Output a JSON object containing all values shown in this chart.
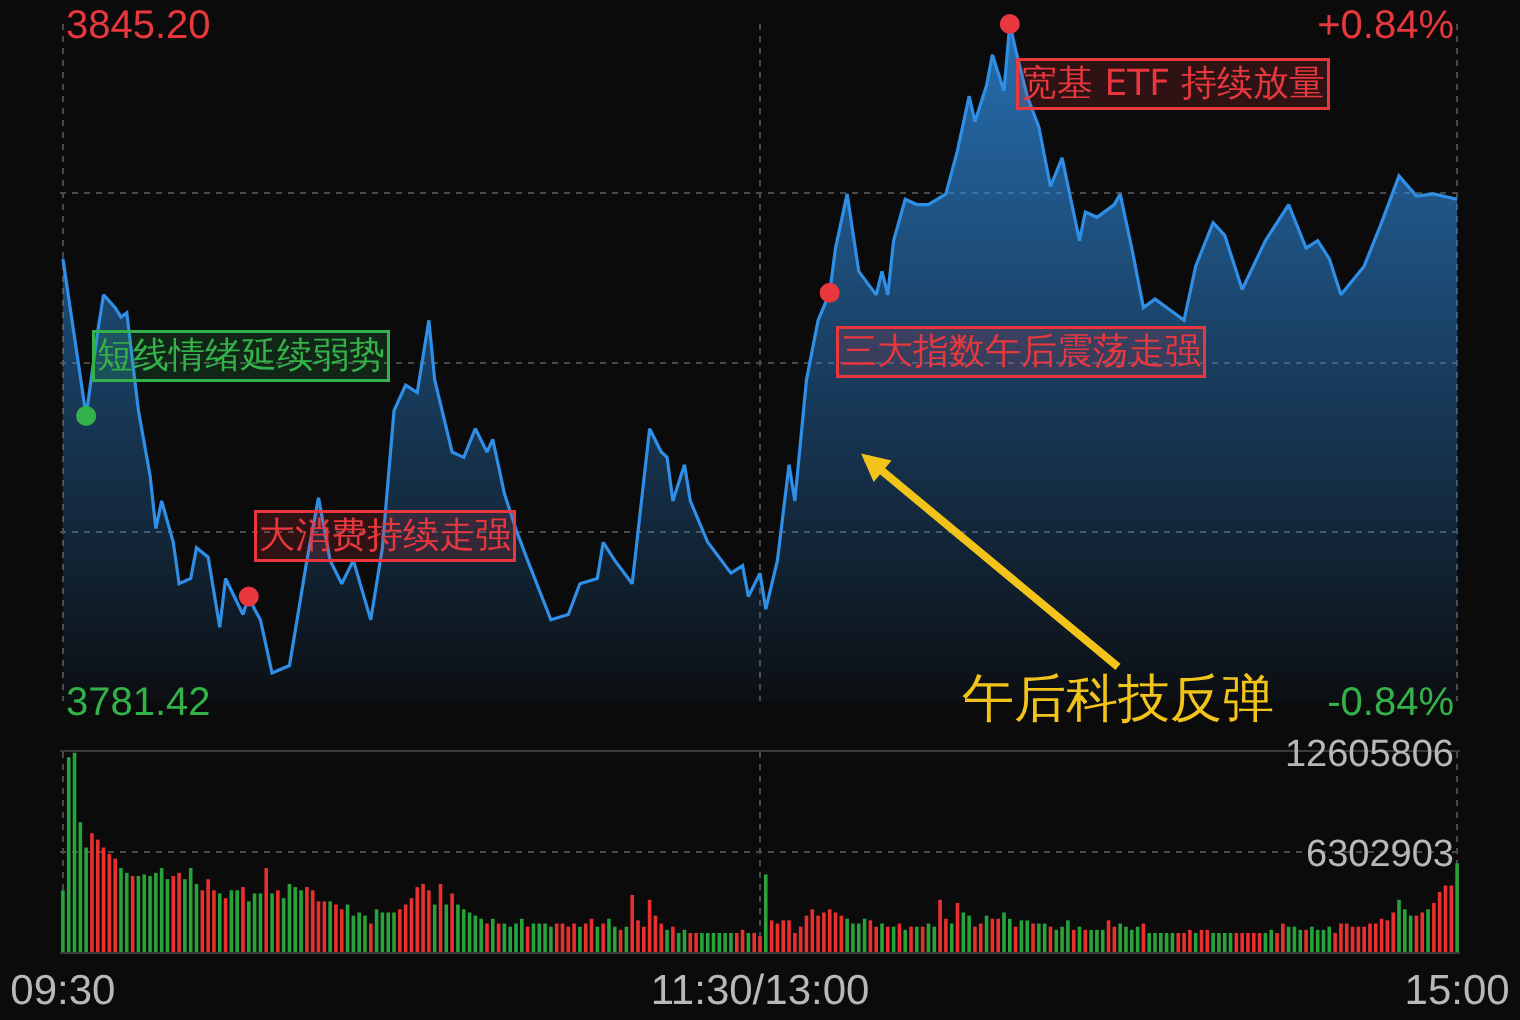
{
  "chart_data": [
    {
      "type": "area",
      "categories": [
        "09:30",
        null,
        null,
        null,
        null,
        null,
        null,
        null,
        null,
        null,
        null,
        null,
        null,
        null,
        null,
        null,
        null,
        null,
        null,
        null,
        null,
        null,
        null,
        null,
        null,
        null,
        null,
        null,
        null,
        null,
        null,
        null,
        null,
        null,
        null,
        null,
        null,
        null,
        null,
        null,
        null,
        null,
        null,
        null,
        null,
        null,
        null,
        null,
        null,
        null,
        null,
        null,
        null,
        null,
        null,
        null,
        null,
        null,
        null,
        null,
        null,
        null,
        null,
        null,
        null,
        null,
        null,
        null,
        null,
        null,
        null,
        null,
        null,
        null,
        null,
        null,
        null,
        null,
        null,
        null,
        null,
        null,
        null,
        null,
        null,
        null,
        null,
        null,
        null,
        null,
        null,
        null,
        null,
        null,
        null,
        null,
        null,
        null,
        null,
        null,
        null,
        null,
        null,
        null,
        null,
        null,
        null,
        null,
        null,
        null,
        null,
        null,
        null,
        null,
        null,
        null,
        null,
        null,
        null,
        null,
        "11:30/13:00",
        null,
        null,
        null,
        null,
        null,
        null,
        null,
        null,
        null,
        null,
        null,
        null,
        null,
        null,
        null,
        null,
        null,
        null,
        null,
        null,
        null,
        null,
        null,
        null,
        null,
        null,
        null,
        null,
        null,
        null,
        null,
        null,
        null,
        null,
        null,
        null,
        null,
        null,
        null,
        null,
        null,
        null,
        null,
        null,
        null,
        null,
        null,
        null,
        null,
        null,
        null,
        null,
        null,
        null,
        null,
        null,
        null,
        null,
        null,
        null,
        null,
        null,
        null,
        null,
        null,
        null,
        null,
        null,
        null,
        null,
        null,
        null,
        null,
        null,
        null,
        null,
        null,
        null,
        null,
        null,
        null,
        null,
        null,
        null,
        null,
        null,
        null,
        null,
        null,
        null,
        null,
        null,
        null,
        null,
        null,
        null,
        null,
        null,
        null,
        null,
        null,
        null,
        null,
        null,
        null,
        null,
        null,
        null,
        null,
        null,
        null,
        null,
        null,
        null,
        null,
        null,
        null,
        null,
        null,
        "15:00"
      ],
      "ylim": [
        3781.42,
        3845.2
      ],
      "yticks": [
        {
          "value": 3781.42,
          "label": "3781.42"
        },
        {
          "value": 3797.37,
          "label": null
        },
        {
          "value": 3813.31,
          "label": null
        },
        {
          "value": 3829.26,
          "label": null
        },
        {
          "value": 3845.2,
          "label": "3845.20"
        }
      ],
      "y2lim": [
        -0.84,
        0.84
      ],
      "y2ticks": [
        {
          "value": -0.84,
          "label": "-0.84%"
        },
        {
          "value": 0.84,
          "label": "+0.84%"
        }
      ],
      "grid": true,
      "series": [
        {
          "color": "#2f8fe6",
          "values": [
            3823.1,
            null,
            null,
            null,
            3808.3,
            null,
            3816.3,
            3819.7,
            null,
            3818.5,
            3817.6,
            3818.0,
            null,
            3808.8,
            null,
            3802.7,
            3797.7,
            3800.3,
            null,
            3796.4,
            3792.5,
            null,
            3793.0,
            3795.9,
            null,
            3795.0,
            null,
            3788.4,
            3793.0,
            null,
            null,
            3789.6,
            3791.3,
            3790.1,
            3789.1,
            null,
            3784.1,
            null,
            null,
            3784.8,
            null,
            null,
            3794.7,
            null,
            3800.6,
            null,
            3794.7,
            null,
            3792.5,
            null,
            3794.7,
            null,
            null,
            3789.1,
            null,
            3795.9,
            null,
            3808.8,
            null,
            3811.2,
            null,
            3810.5,
            null,
            3817.3,
            3811.7,
            null,
            null,
            3804.9,
            null,
            3804.4,
            null,
            3807.1,
            null,
            3804.9,
            3806.1,
            null,
            3801.0,
            null,
            3797.6,
            null,
            3794.7,
            null,
            null,
            null,
            3789.1,
            null,
            null,
            3789.6,
            null,
            3792.5,
            null,
            null,
            3793.0,
            3796.4,
            null,
            3794.7,
            null,
            null,
            3792.5,
            null,
            null,
            3807.1,
            null,
            3804.9,
            3804.4,
            3800.3,
            null,
            3803.7,
            3800.3,
            null,
            null,
            3796.4,
            null,
            null,
            null,
            3793.5,
            null,
            3794.2,
            3791.3,
            null,
            3793.5,
            3790.1,
            null,
            3794.7,
            null,
            3803.7,
            3800.3,
            null,
            3811.7,
            null,
            3817.3,
            null,
            3819.9,
            3824.1,
            null,
            3829.2,
            null,
            3821.9,
            null,
            null,
            3819.7,
            3821.9,
            3819.7,
            3824.8,
            null,
            3828.7,
            null,
            3828.2,
            null,
            3828.2,
            null,
            null,
            3829.2,
            null,
            3833.3,
            null,
            3838.4,
            3836.0,
            null,
            3839.4,
            3842.3,
            null,
            3838.9,
            3845.2,
            3842.8,
            null,
            3838.4,
            null,
            3835.5,
            null,
            3829.9,
            null,
            3832.6,
            null,
            null,
            3824.8,
            3827.5,
            null,
            3827.0,
            null,
            null,
            3828.2,
            3829.2,
            null,
            3824.1,
            null,
            3818.5,
            null,
            3819.3,
            null,
            null,
            null,
            null,
            3817.3,
            null,
            3822.4,
            null,
            null,
            3826.5,
            null,
            3825.3,
            null,
            null,
            3820.2,
            null,
            null,
            null,
            3824.8,
            null,
            null,
            null,
            3828.2,
            null,
            null,
            3824.1,
            null,
            3824.8,
            null,
            3823.1,
            null,
            3819.7,
            null,
            null,
            null,
            3822.4,
            null,
            null,
            3826.5,
            null,
            null,
            3830.9,
            null,
            null,
            3829.0,
            null,
            null,
            3829.2,
            null,
            null,
            null,
            3828.7
          ]
        },
        {
          "type": "scatter",
          "color": "#34b24a",
          "values": [
            null,
            null,
            null,
            null,
            3808.3,
            null,
            null,
            null,
            null,
            null,
            null,
            null,
            null,
            null,
            null,
            null,
            null,
            null,
            null,
            null,
            null,
            null,
            null,
            null,
            null,
            null,
            null,
            null,
            null,
            null,
            null,
            null,
            null,
            null,
            null,
            null,
            null,
            null,
            null,
            null,
            null,
            null,
            null,
            null,
            null,
            null,
            null,
            null,
            null,
            null,
            null,
            null,
            null,
            null,
            null,
            null,
            null,
            null,
            null,
            null,
            null,
            null,
            null,
            null,
            null,
            null,
            null,
            null,
            null,
            null,
            null,
            null,
            null,
            null,
            null,
            null,
            null,
            null,
            null,
            null,
            null,
            null,
            null,
            null,
            null,
            null,
            null,
            null,
            null,
            null,
            null,
            null,
            null,
            null,
            null,
            null,
            null,
            null,
            null,
            null,
            null,
            null,
            null,
            null,
            null,
            null,
            null,
            null,
            null,
            null,
            null,
            null,
            null,
            null,
            null,
            null,
            null,
            null,
            null,
            null,
            null,
            null,
            null,
            null,
            null,
            null,
            null,
            null,
            null,
            null,
            null,
            null,
            null,
            null,
            null,
            null,
            null,
            null,
            null,
            null,
            null,
            null,
            null,
            null,
            null,
            null,
            null,
            null,
            null,
            null,
            null,
            null,
            null,
            null,
            null,
            null,
            null,
            null,
            null,
            null,
            null,
            null,
            null,
            null,
            null,
            null,
            null,
            null,
            null,
            null,
            null,
            null,
            null,
            null,
            null,
            null,
            null,
            null,
            null,
            null,
            null,
            null,
            null,
            null,
            null,
            null,
            null,
            null,
            null,
            null,
            null,
            null,
            null,
            null,
            null,
            null,
            null,
            null,
            null,
            null,
            null,
            null,
            null,
            null,
            null,
            null,
            null,
            null,
            null,
            null,
            null,
            null,
            null,
            null,
            null,
            null,
            null,
            null,
            null,
            null,
            null,
            null,
            null,
            null,
            null,
            null,
            null,
            null,
            null,
            null,
            null,
            null,
            null,
            null,
            null,
            null,
            null,
            null,
            null,
            null,
            null
          ]
        },
        {
          "type": "scatter",
          "color": "#e8383e",
          "values": [
            null,
            null,
            null,
            null,
            null,
            null,
            null,
            null,
            null,
            null,
            null,
            null,
            null,
            null,
            null,
            null,
            null,
            null,
            null,
            null,
            null,
            null,
            null,
            null,
            null,
            null,
            null,
            null,
            null,
            null,
            null,
            null,
            3791.3,
            null,
            null,
            null,
            null,
            null,
            null,
            null,
            null,
            null,
            null,
            null,
            null,
            null,
            null,
            null,
            null,
            null,
            null,
            null,
            null,
            null,
            null,
            null,
            null,
            null,
            null,
            null,
            null,
            null,
            null,
            null,
            null,
            null,
            null,
            null,
            null,
            null,
            null,
            null,
            null,
            null,
            null,
            null,
            null,
            null,
            null,
            null,
            null,
            null,
            null,
            null,
            null,
            null,
            null,
            null,
            null,
            null,
            null,
            null,
            null,
            null,
            null,
            null,
            null,
            null,
            null,
            null,
            null,
            null,
            null,
            null,
            null,
            null,
            null,
            null,
            null,
            null,
            null,
            null,
            null,
            null,
            null,
            null,
            null,
            null,
            null,
            null,
            null,
            null,
            null,
            null,
            null,
            null,
            null,
            null,
            null,
            null,
            null,
            null,
            3819.9,
            null,
            null,
            null,
            null,
            null,
            null,
            null,
            null,
            null,
            null,
            null,
            null,
            null,
            null,
            null,
            null,
            null,
            null,
            null,
            null,
            null,
            null,
            null,
            null,
            null,
            null,
            null,
            null,
            null,
            null,
            3845.2,
            null,
            null,
            null,
            null,
            null,
            null,
            null,
            null,
            null,
            null,
            null,
            null,
            null,
            null,
            null,
            null,
            null,
            null,
            null,
            null,
            null,
            null,
            null,
            null,
            null,
            null,
            null,
            null,
            null,
            null,
            null,
            null,
            null,
            null,
            null,
            null,
            null,
            null,
            null,
            null,
            null,
            null,
            null,
            null,
            null,
            null,
            null,
            null,
            null,
            null,
            null,
            null,
            null,
            null,
            null,
            null,
            null,
            null,
            null,
            null,
            null,
            null,
            null,
            null,
            null,
            null,
            null,
            null,
            null,
            null,
            null,
            null,
            null,
            null,
            null,
            null,
            null
          ]
        },
        {
          "type": "bar",
          "axis": "y3",
          "values": [
            3900000,
            12300000,
            12600000,
            8200000,
            6600000,
            7500000,
            7100000,
            6600000,
            6200000,
            5900000,
            5300000,
            5000000,
            4800000,
            4800000,
            4900000,
            4800000,
            5000000,
            5300000,
            4600000,
            4800000,
            5000000,
            4600000,
            5300000,
            4300000,
            3900000,
            4600000,
            3900000,
            3700000,
            3400000,
            3900000,
            3900000,
            4100000,
            3200000,
            3700000,
            3700000,
            5300000,
            3700000,
            3900000,
            3400000,
            4300000,
            4100000,
            3900000,
            4100000,
            3900000,
            3200000,
            3200000,
            3200000,
            3000000,
            2700000,
            3000000,
            2300000,
            2500000,
            2300000,
            1800000,
            2700000,
            2500000,
            2500000,
            2500000,
            2700000,
            3000000,
            3400000,
            4100000,
            4300000,
            3900000,
            3000000,
            4300000,
            3000000,
            3700000,
            3000000,
            2700000,
            2500000,
            2300000,
            2100000,
            1800000,
            2100000,
            1800000,
            1800000,
            1600000,
            1800000,
            2100000,
            1600000,
            1800000,
            1800000,
            1800000,
            1600000,
            1800000,
            1800000,
            1600000,
            1800000,
            1600000,
            1800000,
            2100000,
            1600000,
            1800000,
            2100000,
            1600000,
            1400000,
            1600000,
            3600000,
            2000000,
            1600000,
            3300000,
            2300000,
            1800000,
            1400000,
            1600000,
            1200000,
            1400000,
            1200000,
            1200000,
            1200000,
            1200000,
            1200000,
            1200000,
            1200000,
            1200000,
            1200000,
            1400000,
            1200000,
            1200000,
            1000000,
            4900000,
            2000000,
            1800000,
            2000000,
            2000000,
            1200000,
            1600000,
            2300000,
            2700000,
            2300000,
            2500000,
            2700000,
            2500000,
            2300000,
            2100000,
            1800000,
            1800000,
            2100000,
            2000000,
            1600000,
            1800000,
            1600000,
            1600000,
            1800000,
            1400000,
            1600000,
            1600000,
            1600000,
            1800000,
            1600000,
            3300000,
            2100000,
            1800000,
            3100000,
            2500000,
            2300000,
            1600000,
            1800000,
            2300000,
            2100000,
            2100000,
            2500000,
            2100000,
            1600000,
            2000000,
            2000000,
            1800000,
            1800000,
            1800000,
            1600000,
            1400000,
            1600000,
            2000000,
            1400000,
            1600000,
            1400000,
            1400000,
            1400000,
            1400000,
            2000000,
            1600000,
            1800000,
            1600000,
            1400000,
            1600000,
            1800000,
            1200000,
            1200000,
            1200000,
            1200000,
            1200000,
            1200000,
            1200000,
            1400000,
            1200000,
            1400000,
            1400000,
            1200000,
            1200000,
            1200000,
            1200000,
            1200000,
            1200000,
            1200000,
            1200000,
            1200000,
            1200000,
            1400000,
            1200000,
            1800000,
            1600000,
            1600000,
            1400000,
            1400000,
            1600000,
            1400000,
            1400000,
            1600000,
            1200000,
            1800000,
            1800000,
            1600000,
            1600000,
            1600000,
            1800000,
            1800000,
            2100000,
            2000000,
            2500000,
            3300000,
            2700000,
            2300000,
            2300000,
            2500000,
            2700000,
            3100000,
            3800000,
            4200000,
            4200000,
            5600000
          ],
          "colors": [
            "#28a23a",
            "#28a23a",
            "#28a23a",
            "#28a23a",
            "#28a23a",
            "#e8312f",
            "#e8312f",
            "#e8312f",
            "#e8312f",
            "#e8312f",
            "#28a23a",
            "#28a23a",
            "#e8312f",
            "#28a23a",
            "#28a23a",
            "#28a23a",
            "#28a23a",
            "#28a23a",
            "#28a23a",
            "#e8312f",
            "#e8312f",
            "#28a23a",
            "#28a23a",
            "#28a23a",
            "#e8312f",
            "#e8312f",
            "#e8312f",
            "#28a23a",
            "#e8312f",
            "#28a23a",
            "#28a23a",
            "#e8312f",
            "#28a23a",
            "#28a23a",
            "#28a23a",
            "#e8312f",
            "#28a23a",
            "#e8312f",
            "#28a23a",
            "#28a23a",
            "#28a23a",
            "#28a23a",
            "#e8312f",
            "#e8312f",
            "#e8312f",
            "#e8312f",
            "#28a23a",
            "#e8312f",
            "#e8312f",
            "#28a23a",
            "#28a23a",
            "#28a23a",
            "#28a23a",
            "#e8312f",
            "#28a23a",
            "#28a23a",
            "#28a23a",
            "#28a23a",
            "#e8312f",
            "#e8312f",
            "#e8312f",
            "#e8312f",
            "#e8312f",
            "#e8312f",
            "#28a23a",
            "#e8312f",
            "#28a23a",
            "#e8312f",
            "#28a23a",
            "#28a23a",
            "#28a23a",
            "#28a23a",
            "#28a23a",
            "#e8312f",
            "#28a23a",
            "#e8312f",
            "#28a23a",
            "#28a23a",
            "#28a23a",
            "#28a23a",
            "#e8312f",
            "#28a23a",
            "#28a23a",
            "#28a23a",
            "#28a23a",
            "#e8312f",
            "#e8312f",
            "#e8312f",
            "#e8312f",
            "#28a23a",
            "#e8312f",
            "#e8312f",
            "#28a23a",
            "#e8312f",
            "#28a23a",
            "#28a23a",
            "#e8312f",
            "#28a23a",
            "#e8312f",
            "#e8312f",
            "#e8312f",
            "#e8312f",
            "#e8312f",
            "#e8312f",
            "#28a23a",
            "#e8312f",
            "#28a23a",
            "#28a23a",
            "#e8312f",
            "#e8312f",
            "#28a23a",
            "#28a23a",
            "#28a23a",
            "#28a23a",
            "#28a23a",
            "#28a23a",
            "#e8312f",
            "#e8312f",
            "#28a23a",
            "#e8312f",
            "#e8312f",
            "#28a23a",
            "#e8312f",
            "#e8312f",
            "#e8312f",
            "#e8312f",
            "#e8312f",
            "#e8312f",
            "#e8312f",
            "#e8312f",
            "#e8312f",
            "#e8312f",
            "#e8312f",
            "#e8312f",
            "#e8312f",
            "#28a23a",
            "#28a23a",
            "#28a23a",
            "#28a23a",
            "#e8312f",
            "#e8312f",
            "#28a23a",
            "#e8312f",
            "#28a23a",
            "#e8312f",
            "#28a23a",
            "#e8312f",
            "#28a23a",
            "#e8312f",
            "#28a23a",
            "#28a23a",
            "#e8312f",
            "#e8312f",
            "#28a23a",
            "#e8312f",
            "#28a23a",
            "#28a23a",
            "#e8312f",
            "#e8312f",
            "#28a23a",
            "#e8312f",
            "#e8312f",
            "#28a23a",
            "#28a23a",
            "#e8312f",
            "#28a23a",
            "#28a23a",
            "#e8312f",
            "#28a23a",
            "#28a23a",
            "#e8312f",
            "#28a23a",
            "#28a23a",
            "#28a23a",
            "#e8312f",
            "#28a23a",
            "#e8312f",
            "#28a23a",
            "#28a23a",
            "#28a23a",
            "#e8312f",
            "#e8312f",
            "#28a23a",
            "#28a23a",
            "#28a23a",
            "#28a23a",
            "#e8312f",
            "#28a23a",
            "#28a23a",
            "#28a23a",
            "#28a23a",
            "#28a23a",
            "#e8312f",
            "#e8312f",
            "#e8312f",
            "#28a23a",
            "#e8312f",
            "#e8312f",
            "#28a23a",
            "#28a23a",
            "#28a23a",
            "#28a23a",
            "#e8312f",
            "#e8312f",
            "#e8312f",
            "#e8312f",
            "#e8312f",
            "#28a23a",
            "#28a23a",
            "#e8312f",
            "#e8312f",
            "#28a23a",
            "#28a23a",
            "#28a23a",
            "#e8312f",
            "#28a23a",
            "#28a23a",
            "#28a23a",
            "#28a23a",
            "#e8312f",
            "#e8312f",
            "#e8312f",
            "#e8312f",
            "#e8312f",
            "#e8312f",
            "#e8312f",
            "#e8312f",
            "#e8312f",
            "#e8312f",
            "#e8312f",
            "#28a23a",
            "#28a23a",
            "#28a23a",
            "#e8312f",
            "#e8312f",
            "#28a23a",
            "#e8312f",
            "#e8312f",
            "#e8312f",
            "#e8312f",
            "#28a23a"
          ]
        }
      ],
      "annotations": [
        "短线情绪延续弱势",
        "大消费持续走强",
        "三大指数午后震荡走强",
        "宽基 ETF 持续放量",
        "午后科技反弹"
      ],
      "y3lim": [
        0,
        12605806
      ],
      "y3ticks": [
        6302903,
        12605806
      ]
    }
  ]
}
